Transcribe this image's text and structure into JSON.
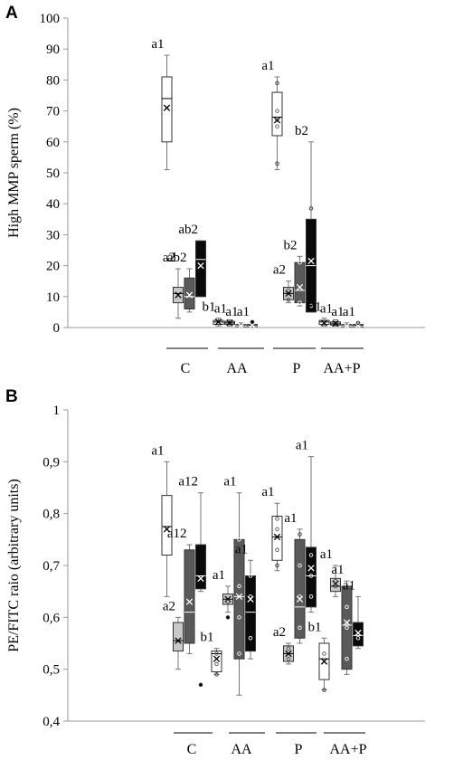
{
  "panels": [
    {
      "letter": "A"
    },
    {
      "letter": "B"
    }
  ],
  "colors": {
    "white": "#ffffff",
    "lightgray": "#c8c8c8",
    "darkgray": "#5a5a5a",
    "black": "#0a0a0a"
  },
  "chart_data": [
    {
      "type": "box",
      "title": "",
      "xlabel": "",
      "ylabel": "High MMP sperm (%)",
      "ylim": [
        0,
        100
      ],
      "yticks": [
        "0",
        "10",
        "20",
        "30",
        "40",
        "50",
        "60",
        "70",
        "80",
        "90",
        "100"
      ],
      "groups": [
        "C",
        "AA",
        "P",
        "AA+P"
      ],
      "boxes": [
        {
          "group": "C",
          "fill": "white",
          "min": 51,
          "q1": 60,
          "median": 74,
          "q3": 81,
          "max": 88,
          "mean": 71,
          "label": "a1",
          "points": []
        },
        {
          "group": "C",
          "fill": "lightgray",
          "min": 3,
          "q1": 8,
          "median": 11,
          "q3": 13,
          "max": 19,
          "mean": 10.5,
          "label": "a2",
          "points": []
        },
        {
          "group": "C",
          "fill": "darkgray",
          "min": 5,
          "q1": 6,
          "median": 10,
          "q3": 16,
          "max": 19,
          "mean": 10.5,
          "label": "ab2",
          "points": []
        },
        {
          "group": "C",
          "fill": "black",
          "min": 10,
          "q1": 10,
          "median": 22,
          "q3": 28,
          "max": 28,
          "mean": 20,
          "label": "ab2",
          "points": []
        },
        {
          "group": "AA",
          "fill": "white",
          "min": 0.5,
          "q1": 1,
          "median": 1.8,
          "q3": 2.3,
          "max": 3,
          "mean": 1.8,
          "label": "b1",
          "points": []
        },
        {
          "group": "AA",
          "fill": "lightgray",
          "min": 0.5,
          "q1": 1,
          "median": 1.5,
          "q3": 2,
          "max": 2.5,
          "mean": 1.5,
          "label": "a1",
          "points": []
        },
        {
          "group": "AA",
          "fill": "darkgray",
          "min": 0,
          "q1": 0.3,
          "median": 0.5,
          "q3": 1,
          "max": 1.5,
          "mean": 0.5,
          "label": "a1",
          "points": []
        },
        {
          "group": "AA",
          "fill": "black",
          "min": 0,
          "q1": 0.3,
          "median": 0.5,
          "q3": 1,
          "max": 1.5,
          "mean": 0.7,
          "label": "a1",
          "points": [
            1.8
          ]
        },
        {
          "group": "P",
          "fill": "white",
          "min": 51,
          "q1": 62,
          "median": 68,
          "q3": 76,
          "max": 81,
          "mean": 67,
          "label": "a1",
          "points": [
            53,
            65,
            67,
            70,
            79
          ]
        },
        {
          "group": "P",
          "fill": "lightgray",
          "min": 8,
          "q1": 9,
          "median": 11,
          "q3": 13,
          "max": 15,
          "mean": 11,
          "label": "a2",
          "points": [
            9,
            12
          ]
        },
        {
          "group": "P",
          "fill": "darkgray",
          "min": 7,
          "q1": 8,
          "median": 12,
          "q3": 21,
          "max": 23,
          "mean": 13,
          "label": "b2",
          "points": [
            8,
            21
          ]
        },
        {
          "group": "P",
          "fill": "black",
          "min": 5,
          "q1": 5,
          "median": 20,
          "q3": 35,
          "max": 60,
          "mean": 21.5,
          "label": "b2",
          "points": [
            7,
            38.5
          ]
        },
        {
          "group": "AA+P",
          "fill": "white",
          "min": 0.5,
          "q1": 1,
          "median": 1.8,
          "q3": 2.3,
          "max": 3,
          "mean": 1.5,
          "label": "b1",
          "points": []
        },
        {
          "group": "AA+P",
          "fill": "lightgray",
          "min": 0.5,
          "q1": 0.8,
          "median": 1.2,
          "q3": 1.8,
          "max": 2.5,
          "mean": 1.3,
          "label": "a1",
          "points": []
        },
        {
          "group": "AA+P",
          "fill": "darkgray",
          "min": 0,
          "q1": 0.3,
          "median": 0.5,
          "q3": 1,
          "max": 1.5,
          "mean": 0.5,
          "label": "a1",
          "points": []
        },
        {
          "group": "AA+P",
          "fill": "black",
          "min": 0,
          "q1": 0.3,
          "median": 0.5,
          "q3": 1,
          "max": 1.5,
          "mean": 0.6,
          "label": "a1",
          "points": [
            1.5
          ]
        }
      ]
    },
    {
      "type": "box",
      "title": "",
      "xlabel": "",
      "ylabel": "PE/FITC raio (arbitrary units)",
      "ylim": [
        0.4,
        1
      ],
      "yticks": [
        "0,4",
        "0,5",
        "0,6",
        "0,7",
        "0,8",
        "0,9",
        "1"
      ],
      "groups": [
        "C",
        "AA",
        "P",
        "AA+P"
      ],
      "boxes": [
        {
          "group": "C",
          "fill": "white",
          "min": 0.64,
          "q1": 0.72,
          "median": 0.775,
          "q3": 0.835,
          "max": 0.9,
          "mean": 0.77,
          "label": "a1",
          "points": []
        },
        {
          "group": "C",
          "fill": "lightgray",
          "min": 0.5,
          "q1": 0.535,
          "median": 0.555,
          "q3": 0.59,
          "max": 0.6,
          "mean": 0.555,
          "label": "a2",
          "points": []
        },
        {
          "group": "C",
          "fill": "darkgray",
          "min": 0.53,
          "q1": 0.55,
          "median": 0.61,
          "q3": 0.73,
          "max": 0.74,
          "mean": 0.63,
          "label": "a12",
          "points": []
        },
        {
          "group": "C",
          "fill": "black",
          "min": 0.65,
          "q1": 0.655,
          "median": 0.68,
          "q3": 0.74,
          "max": 0.84,
          "mean": 0.675,
          "label": "a12",
          "points": [
            0.47
          ]
        },
        {
          "group": "AA",
          "fill": "white",
          "min": 0.49,
          "q1": 0.495,
          "median": 0.53,
          "q3": 0.535,
          "max": 0.54,
          "mean": 0.52,
          "label": "b1",
          "points": [
            0.49,
            0.51,
            0.53
          ]
        },
        {
          "group": "AA",
          "fill": "lightgray",
          "min": 0.61,
          "q1": 0.625,
          "median": 0.635,
          "q3": 0.645,
          "max": 0.66,
          "mean": 0.635,
          "label": "a1",
          "points": [
            0.6,
            0.63
          ]
        },
        {
          "group": "AA",
          "fill": "darkgray",
          "min": 0.45,
          "q1": 0.52,
          "median": 0.64,
          "q3": 0.75,
          "max": 0.84,
          "mean": 0.64,
          "label": "a1",
          "points": [
            0.53,
            0.6,
            0.66,
            0.75
          ]
        },
        {
          "group": "AA",
          "fill": "black",
          "min": 0.52,
          "q1": 0.535,
          "median": 0.61,
          "q3": 0.68,
          "max": 0.71,
          "mean": 0.635,
          "label": "a1",
          "points": [
            0.56,
            0.64,
            0.68
          ]
        },
        {
          "group": "P",
          "fill": "white",
          "min": 0.69,
          "q1": 0.71,
          "median": 0.755,
          "q3": 0.795,
          "max": 0.82,
          "mean": 0.755,
          "label": "a1",
          "points": [
            0.7,
            0.73,
            0.77,
            0.79
          ]
        },
        {
          "group": "P",
          "fill": "lightgray",
          "min": 0.51,
          "q1": 0.515,
          "median": 0.53,
          "q3": 0.545,
          "max": 0.55,
          "mean": 0.53,
          "label": "a2",
          "points": [
            0.52,
            0.54
          ]
        },
        {
          "group": "P",
          "fill": "darkgray",
          "min": 0.55,
          "q1": 0.56,
          "median": 0.62,
          "q3": 0.75,
          "max": 0.77,
          "mean": 0.635,
          "label": "a1",
          "points": [
            0.58,
            0.64,
            0.7,
            0.76
          ]
        },
        {
          "group": "P",
          "fill": "black",
          "min": 0.61,
          "q1": 0.62,
          "median": 0.68,
          "q3": 0.735,
          "max": 0.91,
          "mean": 0.695,
          "label": "a1",
          "points": [
            0.64,
            0.68,
            0.72
          ]
        },
        {
          "group": "AA+P",
          "fill": "white",
          "min": 0.46,
          "q1": 0.48,
          "median": 0.52,
          "q3": 0.55,
          "max": 0.56,
          "mean": 0.515,
          "label": "b1",
          "points": [
            0.46,
            0.53
          ]
        },
        {
          "group": "AA+P",
          "fill": "lightgray",
          "min": 0.64,
          "q1": 0.65,
          "median": 0.66,
          "q3": 0.675,
          "max": 0.7,
          "mean": 0.665,
          "label": "a1",
          "points": [
            0.66,
            0.67
          ]
        },
        {
          "group": "AA+P",
          "fill": "darkgray",
          "min": 0.49,
          "q1": 0.5,
          "median": 0.585,
          "q3": 0.66,
          "max": 0.67,
          "mean": 0.59,
          "label": "a1",
          "points": [
            0.52,
            0.58,
            0.62
          ]
        },
        {
          "group": "AA+P",
          "fill": "black",
          "min": 0.54,
          "q1": 0.545,
          "median": 0.565,
          "q3": 0.59,
          "max": 0.64,
          "mean": 0.57,
          "label": "a1",
          "points": [
            0.56
          ]
        }
      ]
    }
  ]
}
